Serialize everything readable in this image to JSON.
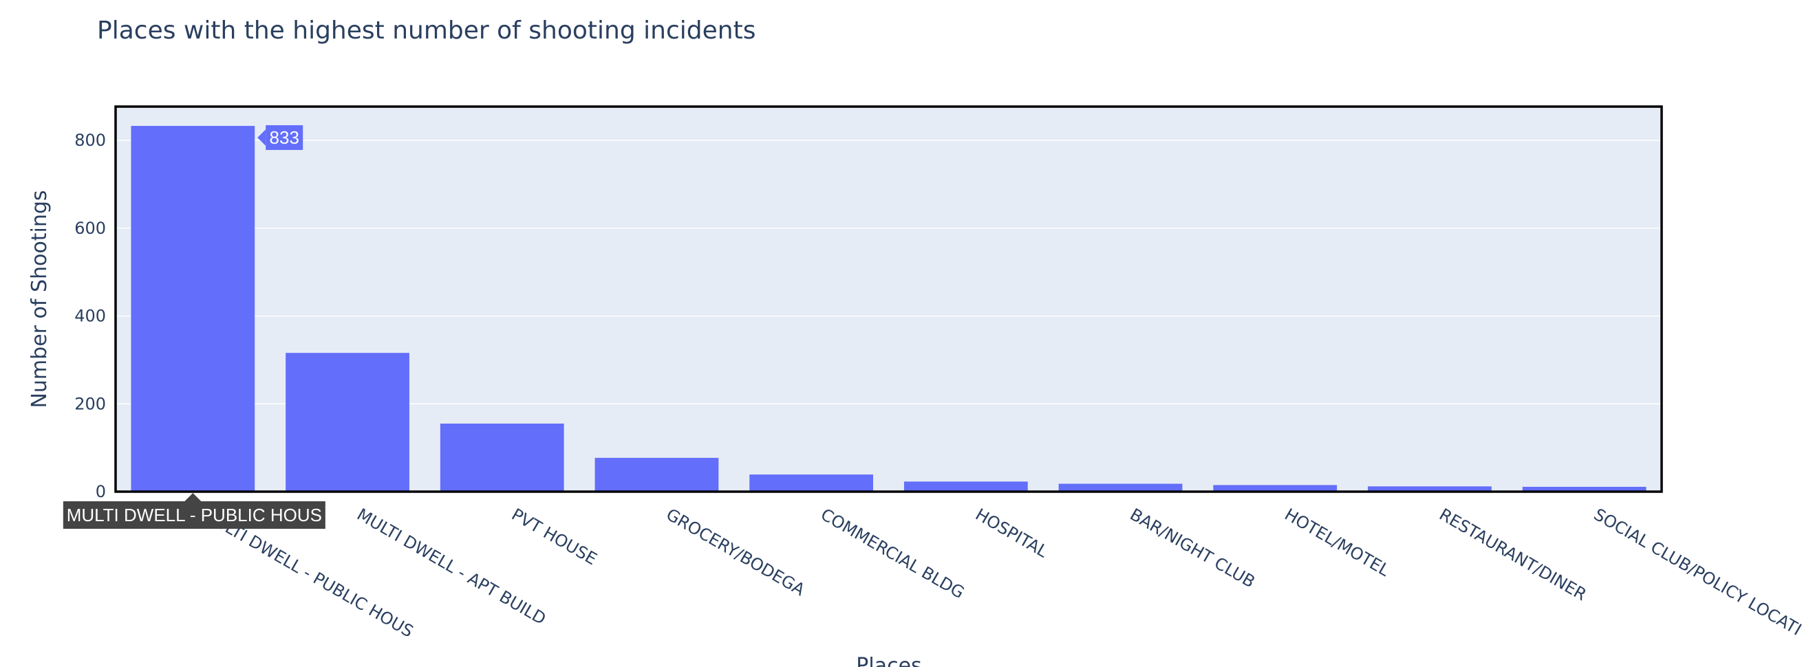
{
  "chart_data": {
    "type": "bar",
    "title": "Places with the highest number of shooting incidents",
    "xlabel": "Places",
    "ylabel": "Number of Shootings",
    "categories": [
      "MULTI DWELL - PUBLIC HOUS",
      "MULTI DWELL - APT BUILD",
      "PVT HOUSE",
      "GROCERY/BODEGA",
      "COMMERCIAL BLDG",
      "HOSPITAL",
      "BAR/NIGHT CLUB",
      "HOTEL/MOTEL",
      "RESTAURANT/DINER",
      "SOCIAL CLUB/POLICY LOCATI"
    ],
    "values": [
      833,
      316,
      155,
      77,
      39,
      23,
      18,
      15,
      12,
      11
    ],
    "ylim": [
      0,
      877
    ],
    "yticks": [
      0,
      200,
      400,
      600,
      800
    ],
    "grid": true,
    "bar_color": "#636efa",
    "plot_bg": "#e5ecf6",
    "hover": {
      "value_label": "833",
      "category_label": "MULTI DWELL - PUBLIC HOUS"
    }
  }
}
